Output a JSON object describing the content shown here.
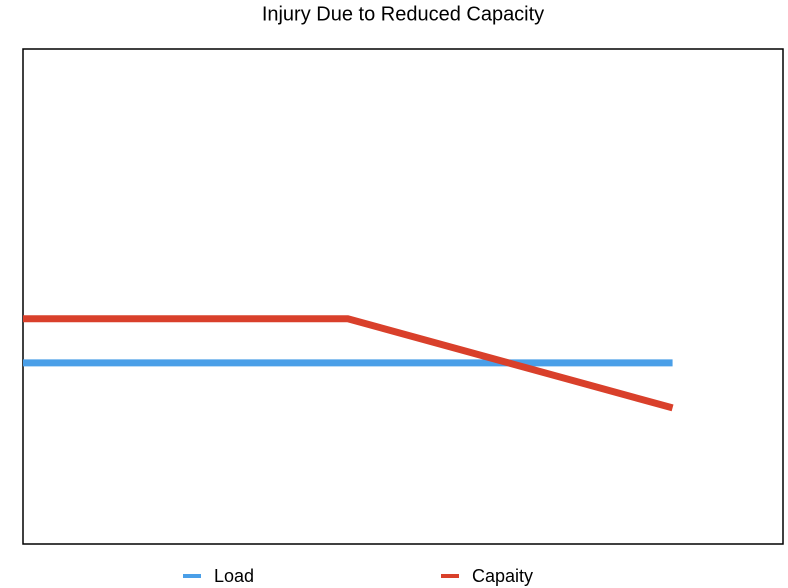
{
  "chart_data": {
    "type": "line",
    "title": "Injury Due to Reduced Capacity",
    "x": [
      0,
      1,
      2
    ],
    "xlim": [
      0,
      2.34
    ],
    "ylim": [
      0,
      10
    ],
    "legend": "bottom",
    "series": [
      {
        "name": "Load",
        "color": "#4a9fe8",
        "values": [
          3.66,
          3.66,
          3.66
        ]
      },
      {
        "name": "Capaity",
        "color": "#d9402b",
        "values": [
          4.55,
          4.55,
          2.75
        ]
      }
    ]
  }
}
